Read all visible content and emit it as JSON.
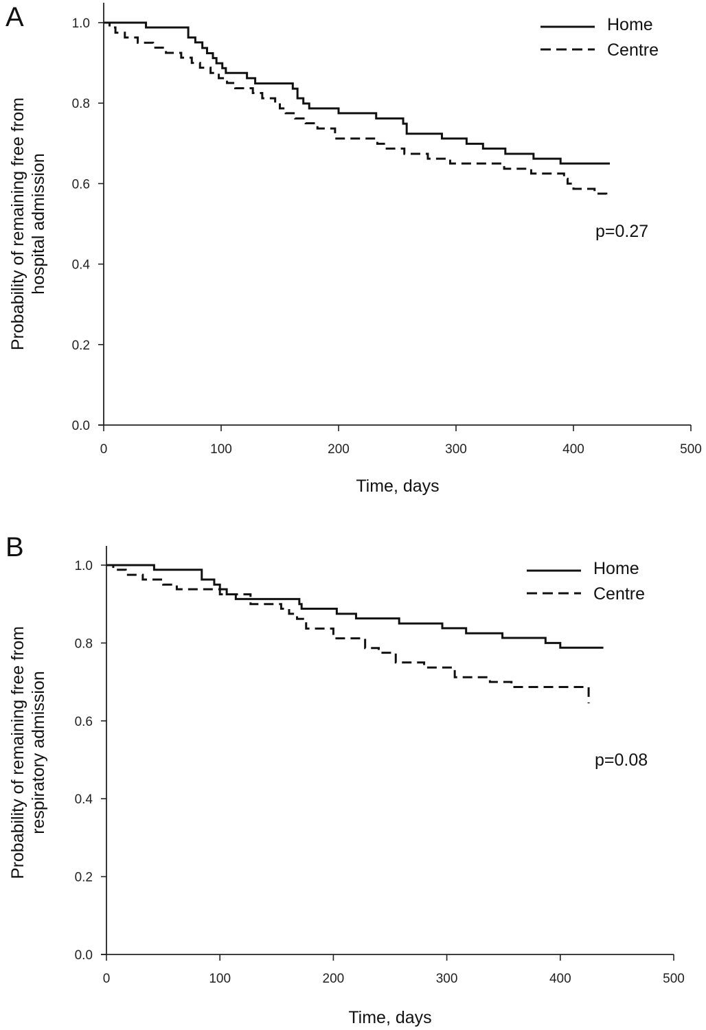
{
  "chart_data": [
    {
      "type": "line",
      "subtype": "kaplan-meier-step",
      "panel": "A",
      "title": "",
      "xlabel": "Time, days",
      "ylabel_lines": [
        "Probability of remaining free from",
        "hospital admission"
      ],
      "xlim": [
        0,
        500
      ],
      "ylim": [
        0,
        1.0
      ],
      "xticks": [
        "0",
        "100",
        "200",
        "300",
        "400",
        "500"
      ],
      "yticks": [
        "0.0",
        "0.2",
        "0.4",
        "0.6",
        "0.8",
        "1.0"
      ],
      "grid": false,
      "legend": {
        "position": "top-right",
        "entries": [
          "Home",
          "Centre"
        ]
      },
      "annotation": "p=0.27",
      "series": [
        {
          "name": "Home",
          "style": "solid",
          "x": [
            0,
            36,
            72,
            78,
            84,
            88,
            93,
            96,
            101,
            104,
            114,
            122,
            129,
            161,
            165,
            170,
            175,
            200,
            232,
            255,
            258,
            268,
            288,
            309,
            323,
            342,
            366,
            389,
            431
          ],
          "y": [
            1.0,
            0.988,
            0.963,
            0.951,
            0.937,
            0.924,
            0.912,
            0.899,
            0.887,
            0.875,
            0.875,
            0.862,
            0.849,
            0.836,
            0.812,
            0.799,
            0.787,
            0.775,
            0.762,
            0.749,
            0.724,
            0.724,
            0.712,
            0.699,
            0.687,
            0.674,
            0.662,
            0.65,
            0.65
          ]
        },
        {
          "name": "Centre",
          "style": "dashed",
          "x": [
            0,
            5,
            10,
            18,
            29,
            42,
            53,
            66,
            75,
            82,
            91,
            98,
            105,
            112,
            127,
            135,
            146,
            150,
            155,
            163,
            172,
            182,
            197,
            233,
            241,
            256,
            276,
            295,
            320,
            341,
            364,
            392,
            395,
            400,
            418,
            428
          ],
          "y": [
            1.0,
            0.988,
            0.975,
            0.963,
            0.95,
            0.938,
            0.925,
            0.913,
            0.9,
            0.888,
            0.875,
            0.862,
            0.85,
            0.837,
            0.825,
            0.812,
            0.8,
            0.787,
            0.775,
            0.762,
            0.75,
            0.737,
            0.712,
            0.699,
            0.687,
            0.674,
            0.662,
            0.65,
            0.65,
            0.637,
            0.625,
            0.612,
            0.6,
            0.587,
            0.575,
            0.565
          ]
        }
      ]
    },
    {
      "type": "line",
      "subtype": "kaplan-meier-step",
      "panel": "B",
      "title": "",
      "xlabel": "Time, days",
      "ylabel_lines": [
        "Probability of remaining free from",
        "respiratory admission"
      ],
      "xlim": [
        0,
        500
      ],
      "ylim": [
        0,
        1.0
      ],
      "xticks": [
        "0",
        "100",
        "200",
        "300",
        "400",
        "500"
      ],
      "yticks": [
        "0.0",
        "0.2",
        "0.4",
        "0.6",
        "0.8",
        "1.0"
      ],
      "grid": false,
      "legend": {
        "position": "top-right",
        "entries": [
          "Home",
          "Centre"
        ]
      },
      "annotation": "p=0.08",
      "series": [
        {
          "name": "Home",
          "style": "solid",
          "x": [
            0,
            10,
            42,
            79,
            84,
            95,
            100,
            106,
            114,
            170,
            172,
            203,
            220,
            258,
            264,
            296,
            317,
            349,
            370,
            387,
            400,
            438
          ],
          "y": [
            1.0,
            1.0,
            0.988,
            0.988,
            0.963,
            0.95,
            0.938,
            0.925,
            0.913,
            0.9,
            0.888,
            0.875,
            0.863,
            0.85,
            0.85,
            0.838,
            0.825,
            0.813,
            0.813,
            0.8,
            0.788,
            0.788
          ]
        },
        {
          "name": "Centre",
          "style": "dashed",
          "x": [
            0,
            6,
            17,
            32,
            50,
            62,
            100,
            127,
            154,
            161,
            168,
            176,
            200,
            228,
            240,
            255,
            280,
            307,
            338,
            357,
            377,
            400,
            425
          ],
          "y": [
            1.0,
            0.988,
            0.975,
            0.963,
            0.95,
            0.938,
            0.925,
            0.9,
            0.888,
            0.875,
            0.862,
            0.837,
            0.812,
            0.787,
            0.775,
            0.75,
            0.737,
            0.712,
            0.7,
            0.687,
            0.687,
            0.687,
            0.645
          ]
        }
      ]
    }
  ]
}
